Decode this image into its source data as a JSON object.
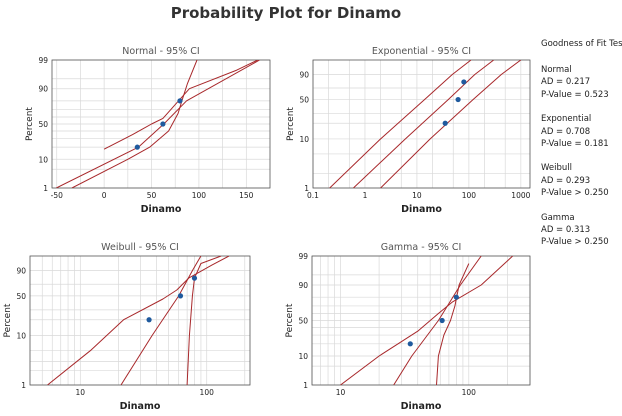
{
  "page": {
    "title": "Probability Plot for Dinamo"
  },
  "gof": {
    "title": "Goodness of Fit Test",
    "entries": [
      {
        "name": "Normal",
        "ad": "AD = 0.217",
        "p": "P-Value = 0.523"
      },
      {
        "name": "Exponential",
        "ad": "AD = 0.708",
        "p": "P-Value = 0.181"
      },
      {
        "name": "Weibull",
        "ad": "AD = 0.293",
        "p": "P-Value > 0.250"
      },
      {
        "name": "Gamma",
        "ad": "AD = 0.313",
        "p": "P-Value > 0.250"
      }
    ]
  },
  "colors": {
    "line": "#a8282b",
    "point": "#1f5a9e",
    "grid": "#d9d9d9",
    "frame": "#555555"
  },
  "chart_data": [
    {
      "type": "scatter",
      "title": "Normal - 95% CI",
      "xlabel": "Dinamo",
      "ylabel": "Percent",
      "xscale": "linear",
      "xlim": [
        -55,
        175
      ],
      "xticks": [
        -50,
        0,
        50,
        100,
        150
      ],
      "xtick_labels": [
        "-50",
        "0",
        "50",
        "100",
        "150"
      ],
      "xgrid": [
        -50,
        -25,
        0,
        25,
        50,
        75,
        100,
        125,
        150
      ],
      "yscale": "normal-probability",
      "ylim": [
        1,
        99
      ],
      "yticks": [
        1,
        10,
        50,
        90,
        99
      ],
      "ygrid": [
        1,
        5,
        10,
        20,
        30,
        40,
        50,
        60,
        70,
        80,
        90,
        95,
        99
      ],
      "points": {
        "x": [
          35,
          62,
          80
        ],
        "y": [
          20,
          50,
          80
        ]
      },
      "fit": [
        [
          -50.5,
          1
        ],
        [
          36,
          20
        ],
        [
          63,
          50
        ],
        [
          87,
          80
        ],
        [
          164,
          99
        ]
      ],
      "ci_lower": [
        [
          0,
          18
        ],
        [
          30,
          35
        ],
        [
          50,
          50
        ],
        [
          62,
          58
        ],
        [
          90,
          90
        ],
        [
          140,
          97.5
        ],
        [
          162,
          99
        ]
      ],
      "ci_upper": [
        [
          -34,
          1
        ],
        [
          25,
          10
        ],
        [
          48,
          20
        ],
        [
          68,
          40
        ],
        [
          78,
          65
        ],
        [
          82,
          80
        ],
        [
          88,
          93
        ],
        [
          98,
          99
        ]
      ],
      "grid": true
    },
    {
      "type": "scatter",
      "title": "Exponential - 95% CI",
      "xlabel": "Dinamo",
      "ylabel": "Percent",
      "xscale": "log-weibull",
      "xlim": [
        0.1,
        1500
      ],
      "xticks": [
        0.1,
        1,
        10,
        100,
        1000
      ],
      "xtick_labels": [
        "0.1",
        "1",
        "10",
        "100",
        "1000"
      ],
      "xgrid": [
        0.1,
        0.2,
        0.5,
        1,
        2,
        5,
        10,
        20,
        50,
        100,
        200,
        500,
        1000
      ],
      "yscale": "weibull-probability",
      "ylim": [
        1,
        99
      ],
      "yticks": [
        1,
        10,
        50,
        90
      ],
      "ygrid": [
        1,
        2,
        5,
        10,
        20,
        30,
        50,
        70,
        90
      ],
      "points": {
        "x": [
          35,
          62,
          80
        ],
        "y": [
          20,
          50,
          80
        ]
      },
      "fit": [
        [
          0.6,
          1
        ],
        [
          6,
          10
        ],
        [
          40,
          50
        ],
        [
          130,
          90
        ],
        [
          300,
          99
        ]
      ],
      "ci_lower": [
        [
          2,
          1
        ],
        [
          18,
          10
        ],
        [
          120,
          50
        ],
        [
          420,
          90
        ],
        [
          1000,
          99
        ]
      ],
      "ci_upper": [
        [
          0.21,
          1
        ],
        [
          2,
          10
        ],
        [
          14,
          50
        ],
        [
          48,
          90
        ],
        [
          110,
          99
        ]
      ],
      "grid": true
    },
    {
      "type": "scatter",
      "title": "Weibull - 95% CI",
      "xlabel": "Dinamo",
      "ylabel": "Percent",
      "xscale": "log",
      "xlim": [
        4,
        220
      ],
      "xticks": [
        10,
        100
      ],
      "xtick_labels": [
        "10",
        "100"
      ],
      "xgrid": [
        5,
        6,
        7,
        8,
        9,
        10,
        20,
        30,
        40,
        50,
        60,
        70,
        80,
        90,
        100,
        200
      ],
      "yscale": "weibull-probability",
      "ylim": [
        1,
        99
      ],
      "yticks": [
        1,
        10,
        50,
        90
      ],
      "ygrid": [
        1,
        2,
        3,
        5,
        10,
        20,
        30,
        50,
        70,
        90
      ],
      "points": {
        "x": [
          35,
          62,
          80
        ],
        "y": [
          20,
          50,
          80
        ]
      },
      "fit": [
        [
          21,
          1
        ],
        [
          37,
          10
        ],
        [
          60,
          50
        ],
        [
          77,
          90
        ],
        [
          90,
          99
        ]
      ],
      "ci_lower": [
        [
          5.5,
          1
        ],
        [
          12,
          5
        ],
        [
          22,
          20
        ],
        [
          45,
          45
        ],
        [
          58,
          60
        ],
        [
          72,
          80
        ],
        [
          110,
          95
        ],
        [
          150,
          99
        ]
      ],
      "ci_upper": [
        [
          70,
          1
        ],
        [
          73,
          10
        ],
        [
          77,
          50
        ],
        [
          80,
          80
        ],
        [
          90,
          96
        ],
        [
          130,
          99
        ]
      ],
      "grid": true
    },
    {
      "type": "scatter",
      "title": "Gamma - 95% CI",
      "xlabel": "Dinamo",
      "ylabel": "Percent",
      "xscale": "log",
      "xlim": [
        6,
        300
      ],
      "xticks": [
        10,
        100
      ],
      "xtick_labels": [
        "10",
        "100"
      ],
      "xgrid": [
        6,
        7,
        8,
        9,
        10,
        20,
        30,
        40,
        50,
        60,
        70,
        80,
        90,
        100,
        200,
        300
      ],
      "yscale": "normal-probability",
      "ylim": [
        1,
        99
      ],
      "yticks": [
        1,
        10,
        50,
        90,
        99
      ],
      "ygrid": [
        1,
        5,
        10,
        20,
        30,
        40,
        50,
        60,
        70,
        80,
        90,
        95,
        99
      ],
      "points": {
        "x": [
          35,
          62,
          80
        ],
        "y": [
          20,
          50,
          80
        ]
      },
      "fit": [
        [
          26,
          1
        ],
        [
          36,
          10
        ],
        [
          58,
          50
        ],
        [
          86,
          90
        ],
        [
          125,
          99
        ]
      ],
      "ci_lower": [
        [
          10,
          1
        ],
        [
          20,
          10
        ],
        [
          40,
          35
        ],
        [
          58,
          60
        ],
        [
          75,
          75
        ],
        [
          125,
          90
        ],
        [
          220,
          99
        ]
      ],
      "ci_upper": [
        [
          56,
          1
        ],
        [
          58,
          10
        ],
        [
          64,
          30
        ],
        [
          72,
          50
        ],
        [
          78,
          70
        ],
        [
          84,
          90
        ],
        [
          100,
          98
        ]
      ],
      "grid": true
    }
  ]
}
